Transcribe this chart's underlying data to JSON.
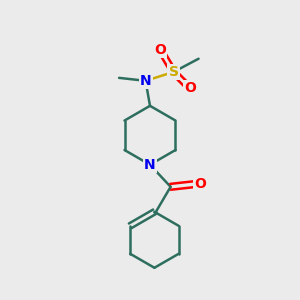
{
  "background_color": "#ebebeb",
  "bond_color": "#2d6e5e",
  "N_color": "#0000ee",
  "O_color": "#ff0000",
  "S_color": "#ccaa00",
  "line_width": 1.8,
  "font_size": 10,
  "figsize": [
    3.0,
    3.0
  ],
  "dpi": 100,
  "xlim": [
    0,
    10
  ],
  "ylim": [
    0,
    10
  ]
}
